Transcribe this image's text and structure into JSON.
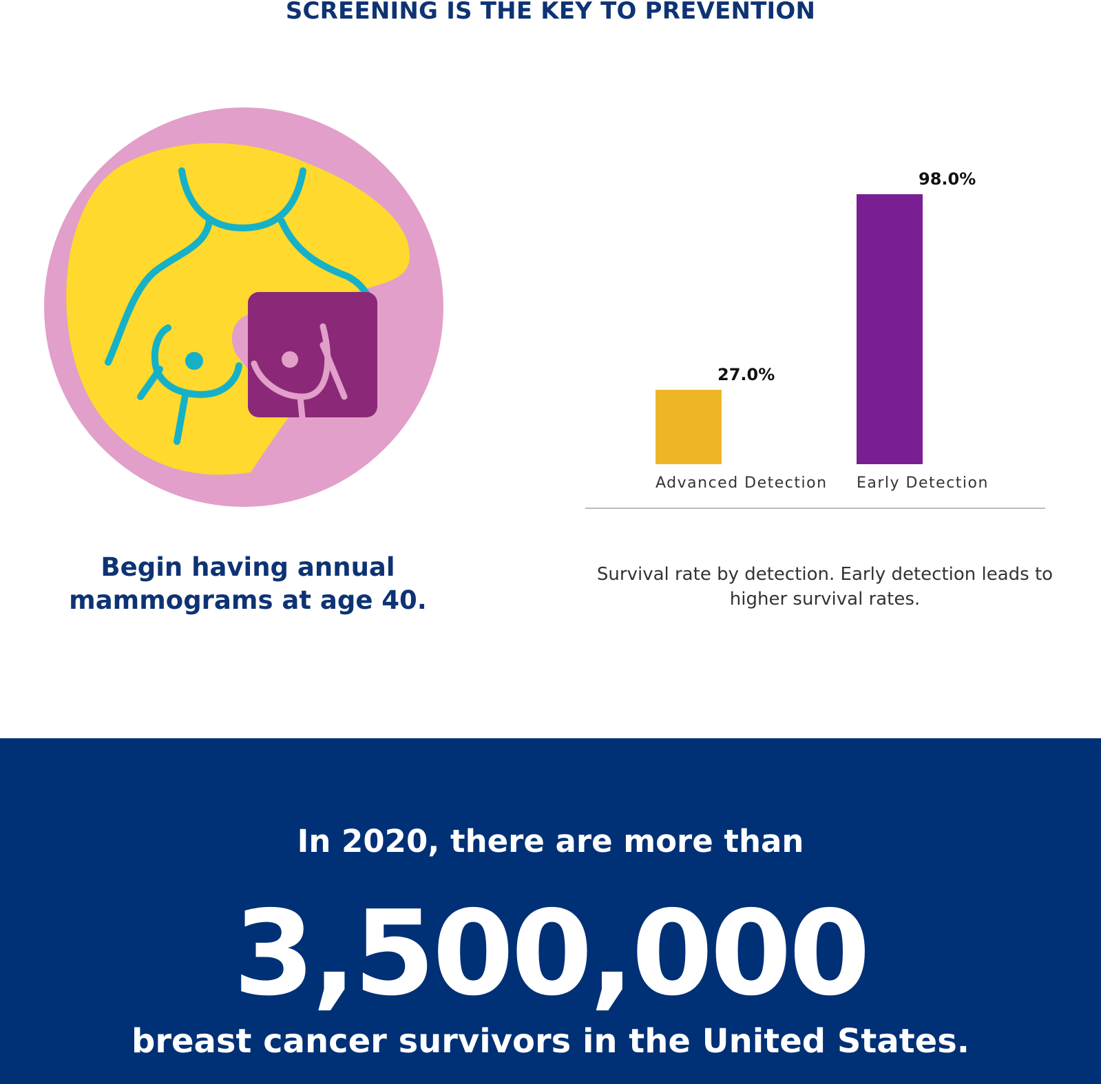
{
  "header": {
    "title": "SCREENING IS THE KEY TO PREVENTION"
  },
  "colors": {
    "navy": "#0e3374",
    "banner": "#003075",
    "circle": "#e19fc9",
    "yellow_blob": "#ffd92e",
    "outline": "#16b1c6",
    "square": "#8b2877",
    "bar_advanced": "#eeb626",
    "bar_early": "#7a1f93"
  },
  "illustration": {
    "icon": "breast-self-exam-icon"
  },
  "tip": {
    "text": "Begin having annual mammograms at age 40."
  },
  "chart_data": {
    "type": "bar",
    "categories": [
      "Advanced Detection",
      "Early Detection"
    ],
    "values": [
      27.0,
      98.0
    ],
    "value_labels": [
      "27.0%",
      "98.0%"
    ],
    "bar_colors": [
      "#eeb626",
      "#7a1f93"
    ],
    "ylim": [
      0,
      100
    ],
    "title": "",
    "xlabel": "",
    "ylabel": "",
    "grid": false,
    "legend": "none"
  },
  "chart_caption": "Survival rate by detection.  Early detection leads to higher survival rates.",
  "banner": {
    "lead": "In 2020, there are more than",
    "number": "3,500,000",
    "tail": "breast cancer survivors in the United States."
  }
}
